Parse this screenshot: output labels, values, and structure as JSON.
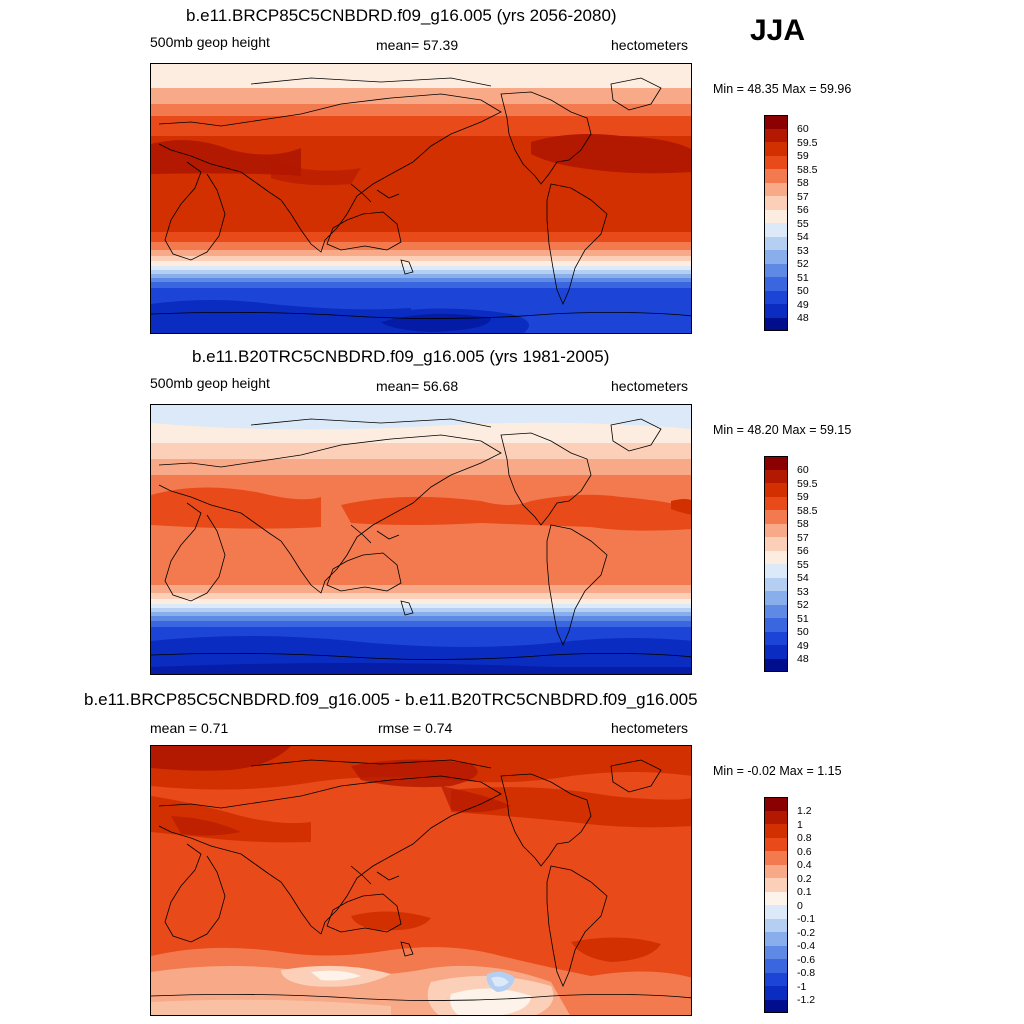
{
  "season": "JJA",
  "colors": {
    "c60": "#8B0000",
    "c595": "#B31800",
    "c59": "#D23000",
    "c585": "#E84A1A",
    "c58": "#F27A4E",
    "c57": "#F8A987",
    "c56": "#FCD0B8",
    "c55": "#FDEDE0",
    "c54": "#DCE9F8",
    "c53": "#B4CFF2",
    "c52": "#88AEEC",
    "c51": "#5E8AE6",
    "c50": "#3A66E0",
    "c49": "#1C44D6",
    "c48": "#0A2CC0",
    "c47": "#000E8E",
    "b12": "#8B0000",
    "b10": "#B31800",
    "b08": "#D23000",
    "b06": "#E84A1A",
    "b04": "#F27A4E",
    "b02": "#F8A987",
    "b01": "#FCD0B8",
    "b00": "#FDF3EA",
    "bm01": "#DCE9F8",
    "bm02": "#B4CFF2",
    "bm04": "#88AEEC",
    "bm06": "#5E8AE6",
    "bm08": "#3A66E0",
    "bm10": "#1C44D6",
    "bm12": "#0A2CC0",
    "bm13": "#000E8E"
  },
  "panels": [
    {
      "title": "b.e11.BRCP85C5CNBDRD.f09_g16.005 (yrs 2056-2080)",
      "left_label": "500mb geop height",
      "center_label": "mean=  57.39",
      "units": "hectometers",
      "minmax": "Min =  48.35 Max =  59.96",
      "colorbar_labels": [
        "60",
        "59.5",
        "59",
        "58.5",
        "58",
        "57",
        "56",
        "55",
        "54",
        "53",
        "52",
        "51",
        "50",
        "49",
        "48"
      ]
    },
    {
      "title": "b.e11.B20TRC5CNBDRD.f09_g16.005 (yrs 1981-2005)",
      "left_label": "500mb geop height",
      "center_label": "mean=  56.68",
      "units": "hectometers",
      "minmax": "Min =  48.20 Max =  59.15",
      "colorbar_labels": [
        "60",
        "59.5",
        "59",
        "58.5",
        "58",
        "57",
        "56",
        "55",
        "54",
        "53",
        "52",
        "51",
        "50",
        "49",
        "48"
      ]
    },
    {
      "title": "b.e11.BRCP85C5CNBDRD.f09_g16.005 - b.e11.B20TRC5CNBDRD.f09_g16.005",
      "left_label": "mean =   0.71",
      "center_label": "rmse =   0.74",
      "units": "hectometers",
      "minmax": "Min =  -0.02 Max =   1.15",
      "colorbar_labels": [
        "1.2",
        "1",
        "0.8",
        "0.6",
        "0.4",
        "0.2",
        "0.1",
        "0",
        "-0.1",
        "-0.2",
        "-0.4",
        "-0.6",
        "-0.8",
        "-1",
        "-1.2"
      ]
    }
  ]
}
